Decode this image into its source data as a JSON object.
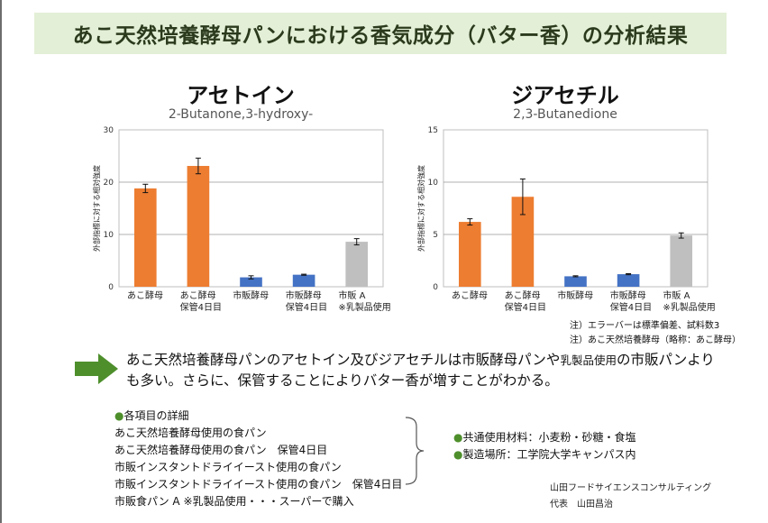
{
  "header": {
    "title": "あこ天然培養酵母パンにおける香気成分（バター香）の分析結果"
  },
  "chart_data": [
    {
      "type": "bar",
      "title": "アセトイン",
      "subtitle": "2-Butanone,3-hydroxy-",
      "ylabel": "外部指標に対する相対強度",
      "ylim": [
        0,
        30
      ],
      "yticks": [
        0,
        10,
        20,
        30
      ],
      "categories": [
        [
          "あこ酵母"
        ],
        [
          "あこ酵母",
          "保管4日目"
        ],
        [
          "市販酵母"
        ],
        [
          "市販酵母",
          "保管4日目"
        ],
        [
          "市販 A",
          "※乳製品使用"
        ]
      ],
      "values": [
        18.8,
        23.1,
        1.8,
        2.3,
        8.6
      ],
      "errors": [
        0.8,
        1.5,
        0.3,
        0.1,
        0.6
      ],
      "colors": [
        "#ed7d31",
        "#ed7d31",
        "#4472c4",
        "#4472c4",
        "#bfbfbf"
      ],
      "grid": true
    },
    {
      "type": "bar",
      "title": "ジアセチル",
      "subtitle": "2,3-Butanedione",
      "ylabel": "外部指標に対する相対強度",
      "ylim": [
        0,
        15
      ],
      "yticks": [
        0,
        5,
        10,
        15
      ],
      "categories": [
        [
          "あこ酵母"
        ],
        [
          "あこ酵母",
          "保管4日目"
        ],
        [
          "市販酵母"
        ],
        [
          "市販酵母",
          "保管4日目"
        ],
        [
          "市販 A",
          "※乳製品使用"
        ]
      ],
      "values": [
        6.2,
        8.6,
        1.0,
        1.2,
        4.9
      ],
      "errors": [
        0.3,
        1.7,
        0.05,
        0.05,
        0.25
      ],
      "colors": [
        "#ed7d31",
        "#ed7d31",
        "#4472c4",
        "#4472c4",
        "#bfbfbf"
      ],
      "grid": true
    }
  ],
  "notes": [
    "注）エラーバーは標準偏差、試料数3",
    "注）あこ天然培養酵母（略称：あこ酵母）"
  ],
  "summary": {
    "part1": "あこ天然培養酵母パンのアセトイン及びジアセチルは市販酵母パンや",
    "part_small": "乳製品使用",
    "part2": "の市販パンよりも多い。さらに、保管することによりバター香が増すことがわかる。"
  },
  "details": {
    "heading": "各項目の詳細",
    "items": [
      "あこ天然培養酵母使用の食パン",
      "あこ天然培養酵母使用の食パン　保管4日目",
      "市販インスタントドライイースト使用の食パン",
      "市販インスタントドライイースト使用の食パン　保管4日目",
      "市販食パン A ※乳製品使用・・・スーパーで購入"
    ]
  },
  "common": {
    "items": [
      "共通使用材料：小麦粉・砂糖・食塩",
      "製造場所：工学院大学キャンパス内"
    ]
  },
  "credit": {
    "company": "山田フードサイエンスコンサルティング",
    "rep": "代表　山田昌治"
  },
  "colors": {
    "accent_green": "#4e8f2c",
    "title_band": "#e3efd6",
    "orange": "#ed7d31",
    "blue": "#4472c4",
    "gray": "#bfbfbf"
  }
}
